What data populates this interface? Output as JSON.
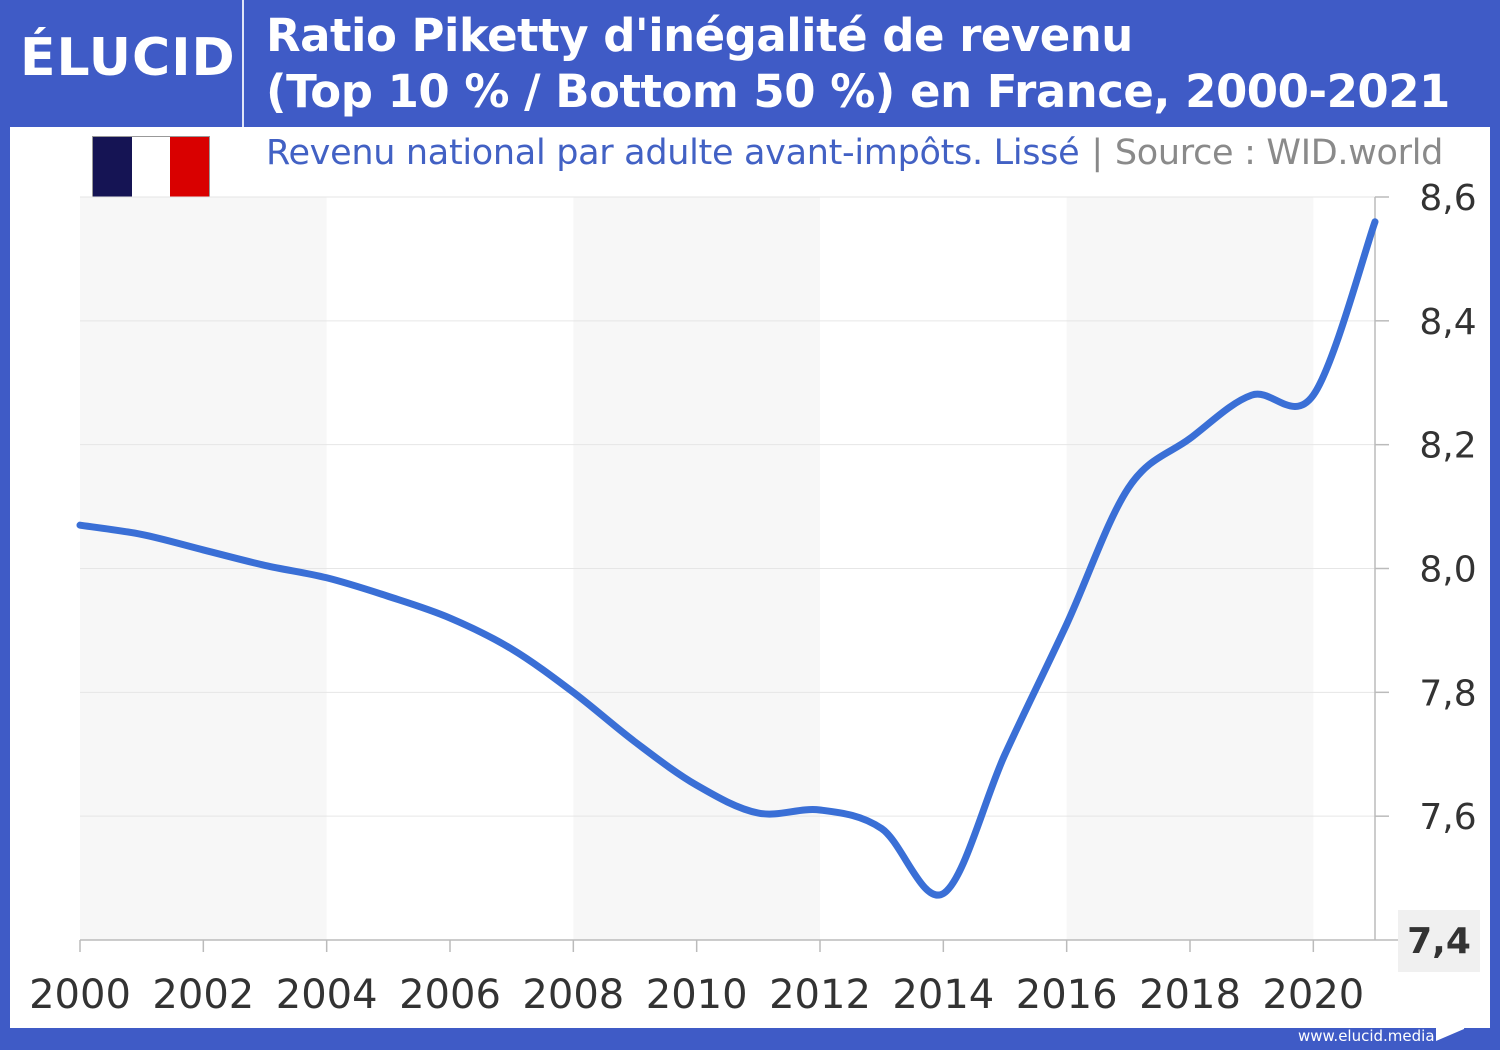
{
  "header": {
    "logo": "ÉLUCID",
    "title_line1": "Ratio Piketty d'inégalité de revenu",
    "title_line2": "(Top 10 % / Bottom 50 %) en France, 2000-2021",
    "subtitle": "Revenu national par adulte avant-impôts. Lissé",
    "separator": "|",
    "source": "Source : WID.world"
  },
  "flag": {
    "colors": [
      "#151454",
      "#ffffff",
      "#d90000"
    ]
  },
  "footer": {
    "url": "www.elucid.media"
  },
  "colors": {
    "brand": "#3f5bc6",
    "line": "#3a6fd6",
    "band": "#f7f7f7"
  },
  "chart_data": {
    "type": "line",
    "title": "Ratio Piketty d'inégalité de revenu (Top 10 % / Bottom 50 %) en France, 2000-2021",
    "x": [
      2000,
      2001,
      2002,
      2003,
      2004,
      2005,
      2006,
      2007,
      2008,
      2009,
      2010,
      2011,
      2012,
      2013,
      2014,
      2015,
      2016,
      2017,
      2018,
      2019,
      2020,
      2021
    ],
    "values": [
      8.07,
      8.055,
      8.03,
      8.005,
      7.985,
      7.955,
      7.92,
      7.87,
      7.8,
      7.72,
      7.65,
      7.605,
      7.61,
      7.58,
      7.475,
      7.7,
      7.91,
      8.13,
      8.21,
      8.28,
      8.28,
      8.56
    ],
    "xlim": [
      2000,
      2021
    ],
    "ylim": [
      7.4,
      8.6
    ],
    "x_ticks": [
      "2000",
      "2002",
      "2004",
      "2006",
      "2008",
      "2010",
      "2012",
      "2014",
      "2016",
      "2018",
      "2020"
    ],
    "y_ticks": [
      "7,4",
      "7,6",
      "7,8",
      "8,0",
      "8,2",
      "8,4",
      "8,6"
    ],
    "y_axis_position": "right",
    "grid": true
  }
}
